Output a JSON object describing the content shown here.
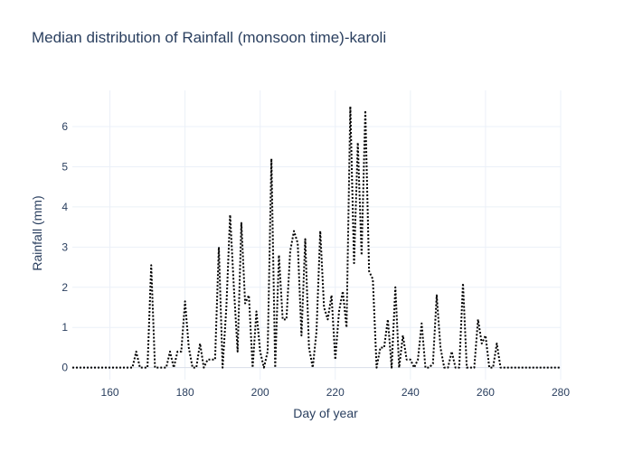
{
  "chart_data": {
    "type": "line",
    "title": "Median distribution of Rainfall (monsoon time)-karoli",
    "xlabel": "Day of year",
    "ylabel": "Rainfall (mm)",
    "xlim": [
      150,
      280
    ],
    "ylim": [
      -0.3,
      6.9
    ],
    "x_ticks": [
      160,
      180,
      200,
      220,
      240,
      260,
      280
    ],
    "y_ticks": [
      0,
      1,
      2,
      3,
      4,
      5,
      6
    ],
    "grid": true,
    "line_style": "dotted",
    "line_color": "#000000",
    "series": [
      {
        "x": [
          150,
          151,
          152,
          153,
          154,
          155,
          156,
          157,
          158,
          159,
          160,
          161,
          162,
          163,
          164,
          165,
          166,
          167,
          168,
          169,
          170,
          171,
          172,
          173,
          174,
          175,
          176,
          177,
          178,
          179,
          180,
          181,
          182,
          183,
          184,
          185,
          186,
          187,
          188,
          189,
          190,
          191,
          192,
          193,
          194,
          195,
          196,
          197,
          198,
          199,
          200,
          201,
          202,
          203,
          204,
          205,
          206,
          207,
          208,
          209,
          210,
          211,
          212,
          213,
          214,
          215,
          216,
          217,
          218,
          219,
          220,
          221,
          222,
          223,
          224,
          225,
          226,
          227,
          228,
          229,
          230,
          231,
          232,
          233,
          234,
          235,
          236,
          237,
          238,
          239,
          240,
          241,
          242,
          243,
          244,
          245,
          246,
          247,
          248,
          249,
          250,
          251,
          252,
          253,
          254,
          255,
          256,
          257,
          258,
          259,
          260,
          261,
          262,
          263,
          264,
          265,
          266,
          267,
          268,
          269,
          270,
          271,
          272,
          273,
          274,
          275,
          276,
          277,
          278,
          279,
          280
        ],
        "y": [
          0,
          0,
          0,
          0,
          0,
          0,
          0,
          0,
          0,
          0,
          0,
          0,
          0,
          0,
          0,
          0,
          0,
          0.4,
          0,
          0,
          0,
          2.55,
          0,
          0,
          0,
          0,
          0.4,
          0,
          0.4,
          0.4,
          1.65,
          0.5,
          0,
          0,
          0.6,
          0,
          0.2,
          0.2,
          0.2,
          3,
          0,
          1.5,
          3.8,
          2,
          0.4,
          3.6,
          1.6,
          1.8,
          0,
          1.4,
          0.4,
          0,
          0.4,
          5.2,
          0,
          2.8,
          1.2,
          1.2,
          2.9,
          3.4,
          3.1,
          0.8,
          3.2,
          0.5,
          0,
          0.9,
          3.4,
          1.5,
          1.2,
          1.8,
          0.2,
          1.4,
          1.9,
          1,
          6.5,
          2.6,
          5.6,
          2.8,
          6.4,
          2.4,
          2.2,
          0,
          0.5,
          0.5,
          1.2,
          0,
          2,
          0,
          0.8,
          0.2,
          0.2,
          0,
          0.2,
          1.1,
          0,
          0,
          0.1,
          1.8,
          0.5,
          0,
          0,
          0.4,
          0,
          0,
          2.1,
          0,
          0,
          0,
          1.2,
          0.6,
          0.8,
          0,
          0,
          0.6,
          0,
          0,
          0,
          0,
          0,
          0,
          0,
          0,
          0,
          0,
          0,
          0,
          0,
          0,
          0,
          0,
          0
        ]
      }
    ]
  }
}
